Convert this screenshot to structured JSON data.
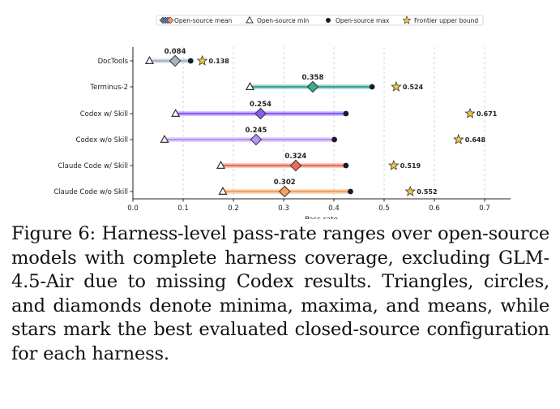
{
  "chart_data": {
    "type": "range-dot",
    "xlabel": "Pass rate",
    "xlim": [
      0.0,
      0.75
    ],
    "xticks": [
      "0.0",
      "0.1",
      "0.2",
      "0.3",
      "0.4",
      "0.5",
      "0.6",
      "0.7"
    ],
    "grid": "vertical dashed",
    "legend_position": "top",
    "legend": [
      {
        "label": "Open-source mean",
        "marker": "diamond"
      },
      {
        "label": "Open-source min",
        "marker": "triangle"
      },
      {
        "label": "Open-source max",
        "marker": "circle"
      },
      {
        "label": "Frontier upper bound",
        "marker": "star"
      }
    ],
    "rows": [
      {
        "name": "DocTools",
        "color": "#a8b4c8",
        "min": 0.033,
        "max": 0.115,
        "mean": 0.084,
        "mean_label": "0.084",
        "frontier": 0.138,
        "frontier_label": "0.138"
      },
      {
        "name": "Terminus-2",
        "color": "#3aa98e",
        "min": 0.233,
        "max": 0.476,
        "mean": 0.358,
        "mean_label": "0.358",
        "frontier": 0.524,
        "frontier_label": "0.524"
      },
      {
        "name": "Codex w/ Skill",
        "color": "#8b5cf6",
        "min": 0.085,
        "max": 0.424,
        "mean": 0.254,
        "mean_label": "0.254",
        "frontier": 0.671,
        "frontier_label": "0.671"
      },
      {
        "name": "Codex w/o Skill",
        "color": "#b794f4",
        "min": 0.063,
        "max": 0.401,
        "mean": 0.245,
        "mean_label": "0.245",
        "frontier": 0.648,
        "frontier_label": "0.648"
      },
      {
        "name": "Claude Code w/ Skill",
        "color": "#ee6c55",
        "min": 0.175,
        "max": 0.424,
        "mean": 0.324,
        "mean_label": "0.324",
        "frontier": 0.519,
        "frontier_label": "0.519"
      },
      {
        "name": "Claude Code w/o Skill",
        "color": "#f6a05c",
        "min": 0.179,
        "max": 0.433,
        "mean": 0.302,
        "mean_label": "0.302",
        "frontier": 0.552,
        "frontier_label": "0.552"
      }
    ]
  },
  "caption": "Figure 6:  Harness-level pass-rate ranges over open-source models with complete harness coverage, excluding GLM-4.5-Air due to missing Codex results.  Triangles, circles, and diamonds denote minima, maxima, and means, while stars mark the best evaluated closed-source configuration for each harness.",
  "colors": {
    "star_fill": "#f5c542",
    "marker_edge": "#333333",
    "max_dot": "#1a1a2e"
  }
}
